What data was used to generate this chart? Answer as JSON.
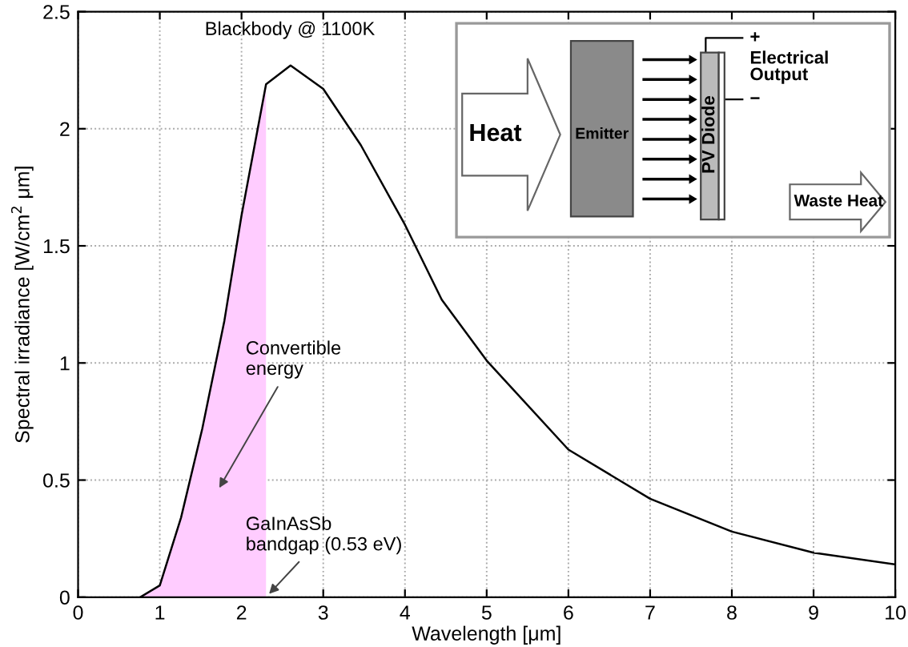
{
  "chart_data": {
    "type": "line",
    "xlabel": "Wavelength [μm]",
    "ylabel": "Spectral irradiance [W/cm$^{2}$ μm]",
    "xlim": [
      0,
      10
    ],
    "ylim": [
      0,
      2.5
    ],
    "xticks": [
      0,
      1,
      2,
      3,
      4,
      5,
      6,
      7,
      8,
      9,
      10
    ],
    "yticks": [
      0,
      0.5,
      1,
      1.5,
      2,
      2.5
    ],
    "grid": true,
    "series": [
      {
        "type": "area",
        "color": "#ffccff",
        "x": [
          0.76,
          1,
          1.26,
          1.52,
          1.79,
          2.0,
          2.3
        ],
        "values": [
          0,
          0.05,
          0.34,
          0.72,
          1.18,
          1.63,
          2.19
        ]
      },
      {
        "color": "#000000",
        "x": [
          0.76,
          1,
          1.26,
          1.52,
          1.79,
          2.0,
          2.3,
          2.6,
          3.0,
          3.46,
          4.0,
          4.45,
          5,
          6,
          7,
          8,
          9,
          10
        ],
        "values": [
          0,
          0.05,
          0.34,
          0.72,
          1.18,
          1.63,
          2.19,
          2.27,
          2.17,
          1.93,
          1.59,
          1.27,
          1.01,
          0.63,
          0.42,
          0.28,
          0.19,
          0.14
        ]
      }
    ],
    "annotations": [
      "Blackbody @ 1100K",
      "Convertible energy",
      {
        "text": "GaInAsSb bandgap (0.53 eV)",
        "x": 2.3,
        "y": 0
      },
      "Heat",
      "Emitter",
      "PV Diode",
      "+",
      "Electrical Output",
      "−",
      "Waste Heat"
    ]
  }
}
